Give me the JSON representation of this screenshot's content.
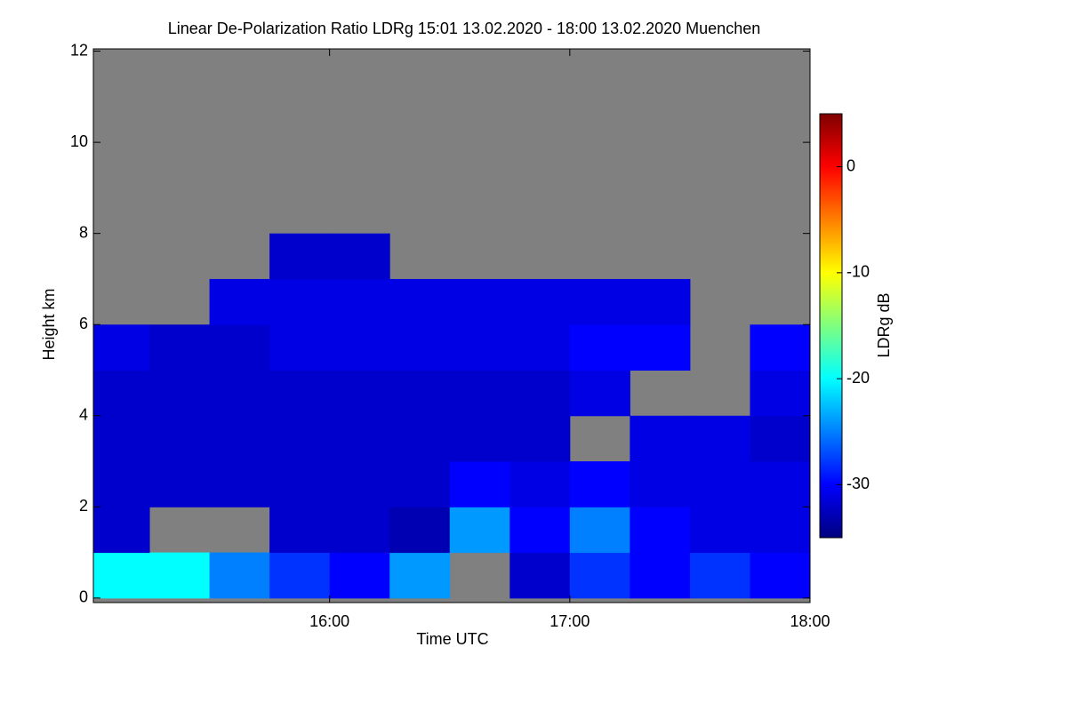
{
  "chart_data": {
    "type": "heatmap",
    "title": "Linear De-Polarization Ratio LDRg   15:01 13.02.2020 - 18:00 13.02.2020 Muenchen",
    "x_label": "Time UTC",
    "y_label": "Height km",
    "colorbar_label": "LDRg dB",
    "xlim": [
      15.0167,
      18.0
    ],
    "xticks": [
      {
        "value": 16,
        "label": "16:00"
      },
      {
        "value": 17,
        "label": "17:00"
      },
      {
        "value": 18,
        "label": "18:00"
      }
    ],
    "ylim": [
      -0.1,
      12.05
    ],
    "yticks": [
      0,
      2,
      4,
      6,
      8,
      10,
      12
    ],
    "zlim": [
      -35,
      5
    ],
    "zticks": [
      0,
      -10,
      -20,
      -30
    ],
    "colormap": [
      "#00007f",
      "#0000ff",
      "#007fff",
      "#00ffff",
      "#7fff7f",
      "#ffff00",
      "#ff7f00",
      "#ff0000",
      "#7f0000"
    ],
    "missing_color": "#808080",
    "x_edges": [
      15.0167,
      15.25,
      15.5,
      15.75,
      16.0,
      16.25,
      16.5,
      16.75,
      17.0,
      17.25,
      17.5,
      17.75,
      18.0
    ],
    "y_edges": [
      0,
      1,
      2,
      3,
      4,
      5,
      6,
      7,
      8,
      9,
      10,
      11,
      12
    ],
    "z": [
      [
        -20,
        -20,
        -25,
        -28,
        -30,
        -24,
        null,
        -32,
        -28,
        -30,
        -28,
        -30
      ],
      [
        -32,
        null,
        null,
        -32,
        -32,
        -33,
        -24,
        -30,
        -25,
        -30,
        -31,
        -31
      ],
      [
        -32,
        -32,
        -32,
        -32,
        -32,
        -32,
        -30,
        -31,
        -30,
        -31,
        -31,
        -31
      ],
      [
        -32,
        -32,
        -32,
        -32,
        -32,
        -32,
        -32,
        -32,
        null,
        -31,
        -31,
        -32
      ],
      [
        -32,
        -32,
        -32,
        -32,
        -32,
        -32,
        -32,
        -32,
        -31,
        null,
        null,
        -31
      ],
      [
        -31,
        -32,
        -32,
        -31,
        -31,
        -31,
        -31,
        -31,
        -30,
        -30,
        null,
        -30
      ],
      [
        null,
        null,
        -31,
        -31,
        -31,
        -31,
        -31,
        -31,
        -31,
        -31,
        null,
        null
      ],
      [
        null,
        null,
        null,
        -32,
        -32,
        null,
        null,
        null,
        null,
        null,
        null,
        null
      ],
      [
        null,
        null,
        null,
        null,
        null,
        null,
        null,
        null,
        null,
        null,
        null,
        null
      ],
      [
        null,
        null,
        null,
        null,
        null,
        null,
        null,
        null,
        null,
        null,
        null,
        null
      ],
      [
        null,
        null,
        null,
        null,
        null,
        null,
        null,
        null,
        null,
        null,
        null,
        null
      ],
      [
        null,
        null,
        null,
        null,
        null,
        null,
        null,
        null,
        null,
        null,
        null,
        null
      ]
    ]
  }
}
